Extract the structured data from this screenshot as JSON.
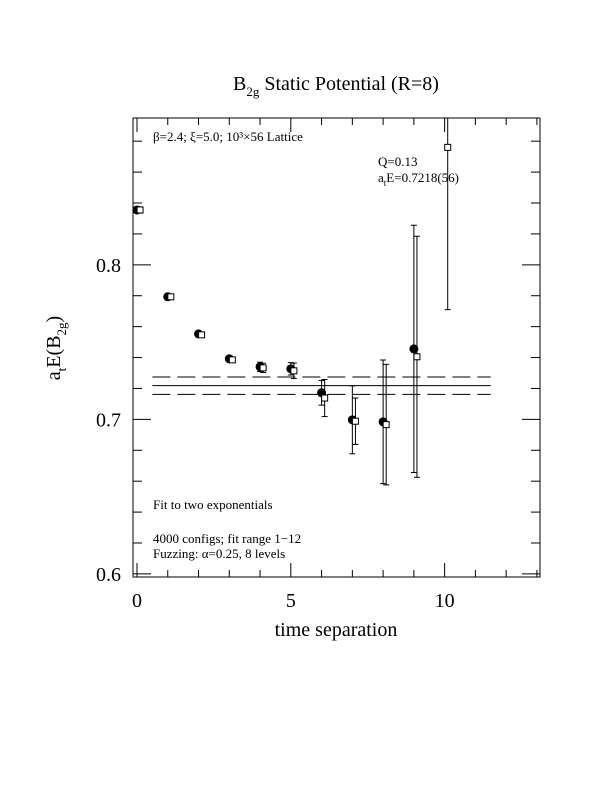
{
  "chart_data": {
    "type": "scatter",
    "title": [
      "B",
      "2g",
      " Static Potential (R=8)"
    ],
    "xlabel": "time separation",
    "ylabel": [
      "a",
      "t",
      "E(B",
      "2g",
      ")"
    ],
    "annotations": {
      "lattice": "β=2.4; ξ=5.0; 10³×56 Lattice",
      "q": "Q=0.13",
      "fit_energy": [
        "a",
        "t",
        "E=0.7218(56)"
      ],
      "fit_type": "Fit to two exponentials",
      "configs": "4000 configs; fit range 1−12",
      "fuzzing": "Fuzzing: α=0.25, 8 levels"
    },
    "xlim": [
      -0.13,
      13.1
    ],
    "ylim": [
      0.598,
      0.895
    ],
    "xticks": [
      0,
      5,
      10
    ],
    "xminorticks": [
      1,
      2,
      3,
      4,
      6,
      7,
      8,
      9,
      11,
      12,
      13
    ],
    "yticks": [
      {
        "value": 0.6,
        "label": "0.6"
      },
      {
        "value": 0.7,
        "label": "0.7"
      },
      {
        "value": 0.8,
        "label": "0.8"
      }
    ],
    "yminorticks": [
      0.62,
      0.64,
      0.66,
      0.68,
      0.72,
      0.74,
      0.76,
      0.78,
      0.82,
      0.84,
      0.86,
      0.88
    ],
    "series": [
      {
        "marker": "circle",
        "color": "#000000",
        "x": [
          0,
          1,
          2,
          3,
          4,
          5,
          6,
          7,
          8,
          9
        ],
        "values": [
          0.8355,
          0.7793,
          0.7553,
          0.7392,
          0.734,
          0.7327,
          0.7172,
          0.6997,
          0.6984,
          0.7456
        ],
        "errors": [
          0.002,
          0.0015,
          0.0015,
          0.0015,
          0.003,
          0.004,
          0.008,
          0.022,
          0.04,
          0.08
        ]
      },
      {
        "marker": "square",
        "color": "#000000",
        "x": [
          0.1,
          1.1,
          2.1,
          3.1,
          4.1,
          5.1,
          6.1,
          7.1,
          8.1,
          9.1,
          10.1
        ],
        "values": [
          0.8355,
          0.7793,
          0.7547,
          0.7385,
          0.7333,
          0.7314,
          0.7138,
          0.6988,
          0.6966,
          0.7405,
          0.876
        ],
        "errors": [
          0.002,
          0.0015,
          0.0015,
          0.0015,
          0.003,
          0.005,
          0.012,
          0.015,
          0.039,
          0.078,
          0.105
        ]
      }
    ],
    "fit": {
      "range": [
        0.5,
        11.5
      ],
      "value": 0.7218,
      "error": 0.0056
    }
  }
}
